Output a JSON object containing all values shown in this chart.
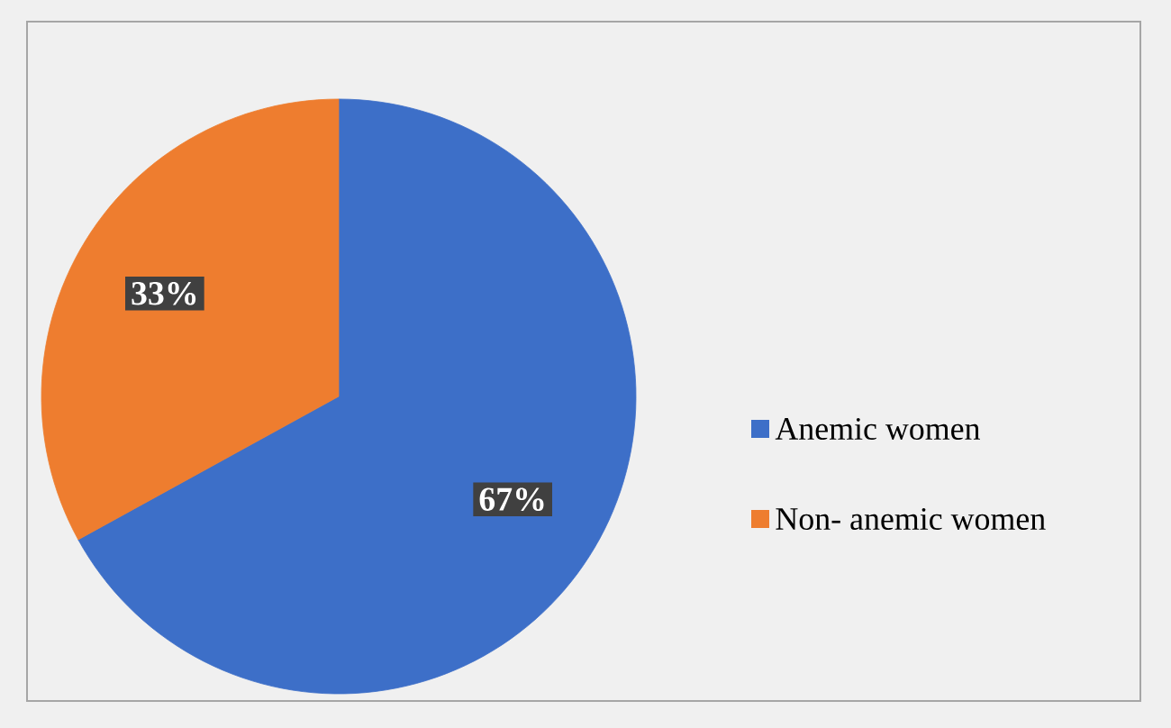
{
  "chart_data": {
    "type": "pie",
    "categories": [
      "Anemic women",
      "Non- anemic women"
    ],
    "values": [
      67,
      33
    ],
    "colors": [
      "#3d6fc8",
      "#ee7d2f"
    ],
    "value_labels": [
      "67%",
      "33%"
    ],
    "legend": "right"
  }
}
